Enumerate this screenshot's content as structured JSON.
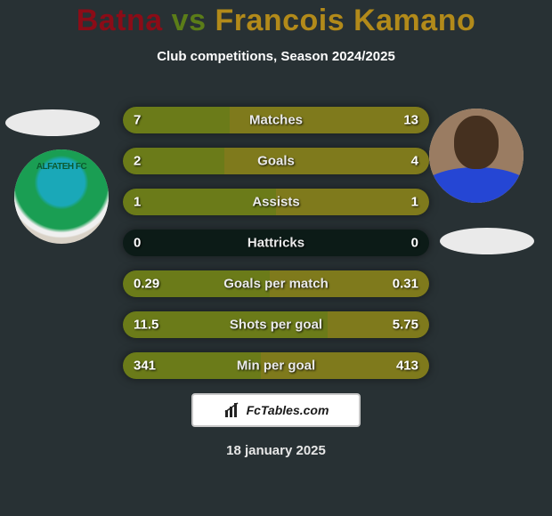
{
  "title": {
    "player1": "Batna",
    "vs": "vs",
    "player2": "Francois Kamano"
  },
  "title_colors": {
    "player1": "#8b0c17",
    "vs": "#5b7d18",
    "player2": "#b28a1a"
  },
  "subtitle": "Club competitions, Season 2024/2025",
  "date": "18 january 2025",
  "footer_brand": "FcTables.com",
  "bar_palette": {
    "background": "#0c1b17",
    "left_bar": "#6b7b19",
    "right_bar": "#7f7a1c"
  },
  "stats": [
    {
      "label": "Matches",
      "left_val": "7",
      "right_val": "13",
      "left_pct": 35,
      "right_pct": 65
    },
    {
      "label": "Goals",
      "left_val": "2",
      "right_val": "4",
      "left_pct": 33,
      "right_pct": 67
    },
    {
      "label": "Assists",
      "left_val": "1",
      "right_val": "1",
      "left_pct": 50,
      "right_pct": 50
    },
    {
      "label": "Hattricks",
      "left_val": "0",
      "right_val": "0",
      "left_pct": 0,
      "right_pct": 0
    },
    {
      "label": "Goals per match",
      "left_val": "0.29",
      "right_val": "0.31",
      "left_pct": 48,
      "right_pct": 52
    },
    {
      "label": "Shots per goal",
      "left_val": "11.5",
      "right_val": "5.75",
      "left_pct": 67,
      "right_pct": 33
    },
    {
      "label": "Min per goal",
      "left_val": "341",
      "right_val": "413",
      "left_pct": 45,
      "right_pct": 55
    }
  ],
  "crest_label": "ALFATEH FC"
}
